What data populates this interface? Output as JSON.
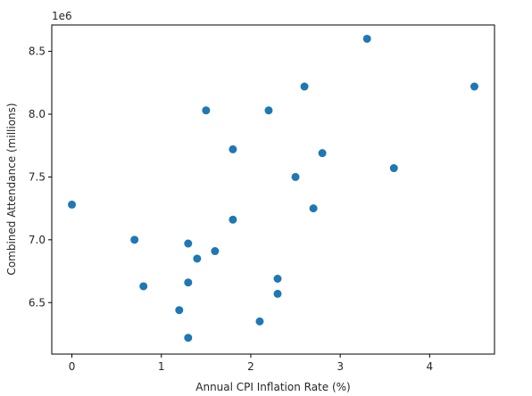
{
  "chart_data": {
    "type": "scatter",
    "xlabel": "Annual CPI Inflation Rate (%)",
    "ylabel": "Combined Attendance (millions)",
    "y_offset_text": "1e6",
    "xlim": [
      -0.225,
      4.725
    ],
    "ylim": [
      6090000.0,
      8710000.0
    ],
    "x_ticks": [
      0,
      1,
      2,
      3,
      4
    ],
    "x_tick_labels": [
      "0",
      "1",
      "2",
      "3",
      "4"
    ],
    "y_ticks": [
      6500000.0,
      7000000.0,
      7500000.0,
      8000000.0,
      8500000.0
    ],
    "y_tick_labels": [
      "6.5",
      "7.0",
      "7.5",
      "8.0",
      "8.5"
    ],
    "grid": false,
    "marker_color": "#1f77b4",
    "points": [
      {
        "x": 0.0,
        "y": 7280000
      },
      {
        "x": 0.7,
        "y": 7000000
      },
      {
        "x": 0.8,
        "y": 6630000
      },
      {
        "x": 1.2,
        "y": 6440000
      },
      {
        "x": 1.3,
        "y": 6970000
      },
      {
        "x": 1.3,
        "y": 6660000
      },
      {
        "x": 1.3,
        "y": 6220000
      },
      {
        "x": 1.4,
        "y": 6850000
      },
      {
        "x": 1.5,
        "y": 8030000
      },
      {
        "x": 1.6,
        "y": 6910000
      },
      {
        "x": 1.8,
        "y": 7720000
      },
      {
        "x": 1.8,
        "y": 7160000
      },
      {
        "x": 2.1,
        "y": 6350000
      },
      {
        "x": 2.2,
        "y": 8030000
      },
      {
        "x": 2.3,
        "y": 6690000
      },
      {
        "x": 2.3,
        "y": 6570000
      },
      {
        "x": 2.5,
        "y": 7500000
      },
      {
        "x": 2.6,
        "y": 8220000
      },
      {
        "x": 2.7,
        "y": 7250000
      },
      {
        "x": 2.8,
        "y": 7690000
      },
      {
        "x": 3.3,
        "y": 8600000
      },
      {
        "x": 3.6,
        "y": 7570000
      },
      {
        "x": 4.5,
        "y": 8220000
      }
    ]
  }
}
